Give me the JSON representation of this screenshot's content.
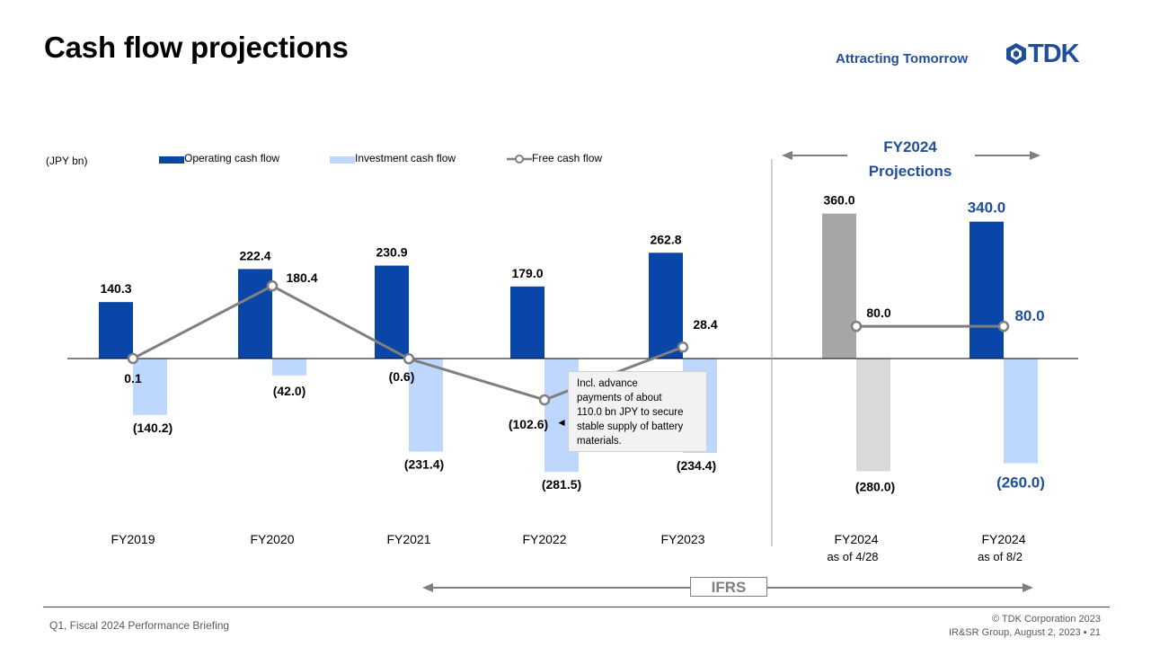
{
  "page": {
    "title": "Cash flow projections",
    "slogan": "Attracting Tomorrow",
    "logo": "TDK",
    "footer_left": "Q1, Fiscal 2024 Performance  Briefing",
    "footer_copyright": "© TDK Corporation 2023",
    "footer_group": "IR&SR Group, August 2, 2023",
    "page_number": "21"
  },
  "colors": {
    "operating": "#0a46a8",
    "investment": "#bdd7ff",
    "free": "#7f7f7f",
    "operating_projection_old": "#a6a6a6",
    "investment_projection_old": "#d9d9d9",
    "brand": "#1f4e9a"
  },
  "legend": {
    "operating": "Operating cash flow",
    "investment": "Investment cash flow",
    "free": "Free cash flow"
  },
  "projections": {
    "heading_line1": "FY2024",
    "heading_line2": "Projections",
    "left_arrow_icon": "arrow-left-icon",
    "right_arrow_icon": "arrow-right-icon"
  },
  "note": {
    "lines": [
      "Incl. advance",
      "payments of about",
      "110.0 bn JPY to secure",
      "stable supply of battery",
      "materials."
    ],
    "pointer": "◄"
  },
  "ifrs": {
    "label": "IFRS"
  },
  "chart_data": {
    "type": "bar",
    "unit_label": "(JPY bn)",
    "categories": [
      "FY2019",
      "FY2020",
      "FY2021",
      "FY2022",
      "FY2023",
      "FY2024",
      "FY2024"
    ],
    "category_sublabels": [
      "",
      "",
      "",
      "",
      "",
      "as of 4/28",
      "as of 8/2"
    ],
    "series": [
      {
        "name": "Operating cash flow",
        "kind": "bar",
        "values": [
          140.3,
          222.4,
          230.9,
          179.0,
          262.8,
          360.0,
          340.0
        ],
        "labels": [
          "140.3",
          "222.4",
          "230.9",
          "179.0",
          "262.8",
          "360.0",
          "340.0"
        ]
      },
      {
        "name": "Investment cash flow",
        "kind": "bar",
        "values": [
          -140.2,
          -42.0,
          -231.4,
          -281.5,
          -234.4,
          -280.0,
          -260.0
        ],
        "labels": [
          "(140.2)",
          "(42.0)",
          "(231.4)",
          "(281.5)",
          "(234.4)",
          "(280.0)",
          "(260.0)"
        ]
      },
      {
        "name": "Free cash flow",
        "kind": "line",
        "values": [
          0.1,
          180.4,
          -0.6,
          -102.6,
          28.4,
          80.0,
          80.0
        ],
        "labels": [
          "0.1",
          "180.4",
          "(0.6)",
          "(102.6)",
          "28.4",
          "80.0",
          "80.0"
        ]
      }
    ],
    "projection_start_index": 5,
    "ylim": [
      -300,
      400
    ],
    "grid": false,
    "legend_position": "top-left"
  }
}
